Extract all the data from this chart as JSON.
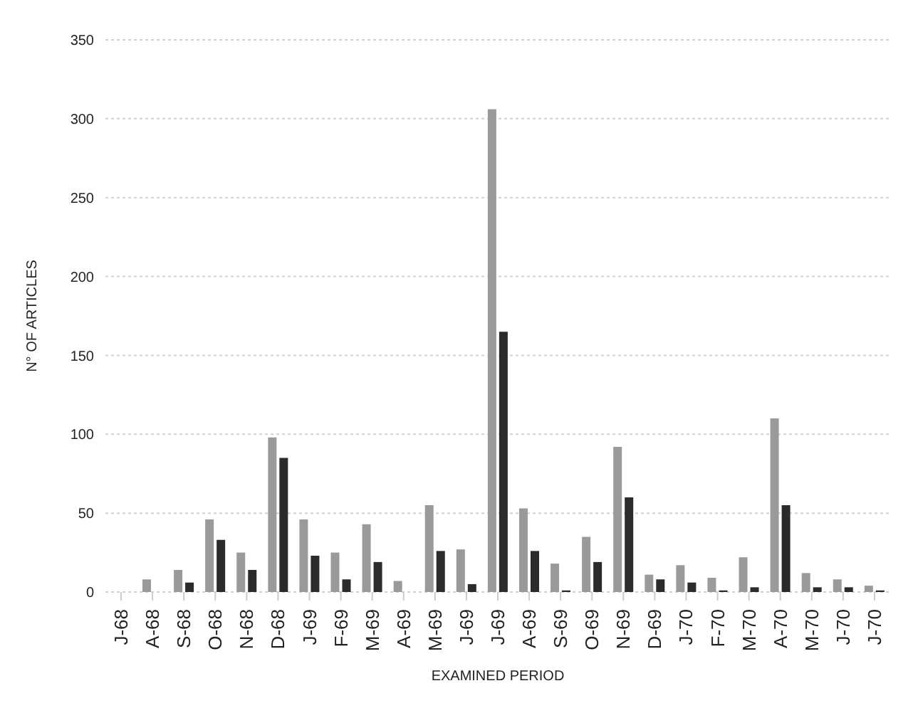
{
  "chart_data": {
    "type": "bar",
    "xlabel": "EXAMINED PERIOD",
    "ylabel": "N° OF ARTICLES",
    "categories": [
      "J-68",
      "A-68",
      "S-68",
      "O-68",
      "N-68",
      "D-68",
      "J-69",
      "F-69",
      "M-69",
      "A-69",
      "M-69",
      "J-69",
      "J-69",
      "A-69",
      "S-69",
      "O-69",
      "N-69",
      "D-69",
      "J-70",
      "F-70",
      "M-70",
      "A-70",
      "M-70",
      "J-70",
      "J-70"
    ],
    "series": [
      {
        "color": "#9a9a9a",
        "values": [
          0,
          8,
          14,
          46,
          25,
          98,
          46,
          25,
          43,
          7,
          55,
          27,
          306,
          53,
          18,
          35,
          92,
          11,
          17,
          9,
          22,
          110,
          12,
          8,
          4
        ]
      },
      {
        "color": "#2b2b2b",
        "values": [
          0,
          0,
          6,
          33,
          14,
          85,
          23,
          8,
          19,
          0,
          26,
          5,
          165,
          26,
          1,
          19,
          60,
          8,
          6,
          1,
          3,
          55,
          3,
          3,
          1
        ]
      }
    ],
    "ylim": [
      0,
      350
    ],
    "yticks": [
      0,
      50,
      100,
      150,
      200,
      250,
      300,
      350
    ],
    "grid": "y"
  }
}
